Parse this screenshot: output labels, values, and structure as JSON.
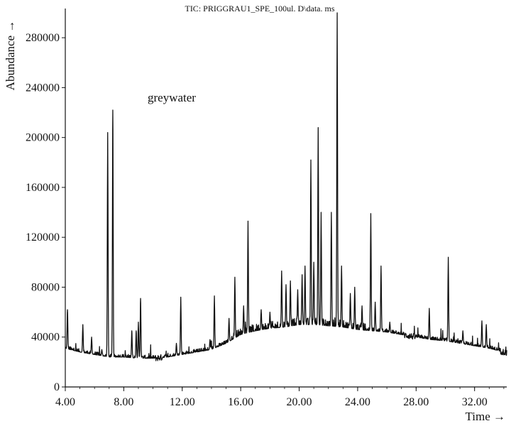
{
  "chart_data": {
    "type": "line",
    "title": "TIC: PRIGGRAU1_SPE_100ul. D\\data. ms",
    "xlabel": "Time →",
    "ylabel": "Abundance →",
    "annotation": "greywater",
    "xlim": [
      4.0,
      34.2
    ],
    "ylim": [
      0,
      300000
    ],
    "x_ticks": [
      4,
      8,
      12,
      16,
      20,
      24,
      28,
      32
    ],
    "x_tick_labels": [
      "4.00",
      "8.00",
      "12.00",
      "16.00",
      "20.00",
      "24.00",
      "28.00",
      "32.00"
    ],
    "y_ticks": [
      0,
      40000,
      80000,
      120000,
      160000,
      200000,
      240000,
      280000
    ],
    "y_tick_labels": [
      "0",
      "40000",
      "80000",
      "120000",
      "160000",
      "200000",
      "240000",
      "280000"
    ],
    "line_color": "#111111",
    "grid": false,
    "baseline": [
      [
        4.0,
        31000
      ],
      [
        5.0,
        28000
      ],
      [
        6.0,
        26000
      ],
      [
        7.0,
        24000
      ],
      [
        8.0,
        24000
      ],
      [
        9.0,
        23000
      ],
      [
        10.0,
        23000
      ],
      [
        11.0,
        24000
      ],
      [
        12.0,
        26000
      ],
      [
        13.0,
        28000
      ],
      [
        14.0,
        30000
      ],
      [
        15.0,
        35000
      ],
      [
        16.0,
        42000
      ],
      [
        17.0,
        45000
      ],
      [
        18.0,
        47000
      ],
      [
        19.0,
        48000
      ],
      [
        20.0,
        50000
      ],
      [
        21.0,
        50000
      ],
      [
        22.0,
        49000
      ],
      [
        23.0,
        48000
      ],
      [
        24.0,
        46000
      ],
      [
        25.0,
        45000
      ],
      [
        26.0,
        44000
      ],
      [
        27.0,
        42000
      ],
      [
        28.0,
        40000
      ],
      [
        29.0,
        38000
      ],
      [
        30.0,
        37000
      ],
      [
        31.0,
        35000
      ],
      [
        32.0,
        33000
      ],
      [
        33.0,
        31000
      ],
      [
        34.0,
        28000
      ],
      [
        34.2,
        27000
      ]
    ],
    "peaks": [
      [
        4.15,
        62000
      ],
      [
        5.2,
        50000
      ],
      [
        5.8,
        40000
      ],
      [
        6.5,
        30000
      ],
      [
        6.9,
        204000
      ],
      [
        7.25,
        222000
      ],
      [
        8.55,
        45000
      ],
      [
        8.85,
        45000
      ],
      [
        9.0,
        52000
      ],
      [
        9.15,
        71000
      ],
      [
        11.6,
        35000
      ],
      [
        11.9,
        72000
      ],
      [
        13.9,
        38000
      ],
      [
        14.2,
        73000
      ],
      [
        15.2,
        55000
      ],
      [
        15.6,
        88000
      ],
      [
        16.2,
        65000
      ],
      [
        16.5,
        133000
      ],
      [
        17.4,
        62000
      ],
      [
        18.0,
        60000
      ],
      [
        18.8,
        93000
      ],
      [
        19.1,
        82000
      ],
      [
        19.4,
        85000
      ],
      [
        19.9,
        78000
      ],
      [
        20.2,
        90000
      ],
      [
        20.4,
        97000
      ],
      [
        20.8,
        182000
      ],
      [
        21.0,
        100000
      ],
      [
        21.3,
        208000
      ],
      [
        21.5,
        140000
      ],
      [
        22.2,
        140000
      ],
      [
        22.6,
        300000
      ],
      [
        22.9,
        97000
      ],
      [
        23.5,
        75000
      ],
      [
        23.8,
        80000
      ],
      [
        24.3,
        65000
      ],
      [
        24.9,
        139000
      ],
      [
        25.2,
        68000
      ],
      [
        25.6,
        97000
      ],
      [
        26.2,
        52000
      ],
      [
        28.9,
        63000
      ],
      [
        30.2,
        104000
      ],
      [
        31.2,
        45000
      ],
      [
        32.5,
        53000
      ],
      [
        32.8,
        50000
      ]
    ]
  }
}
